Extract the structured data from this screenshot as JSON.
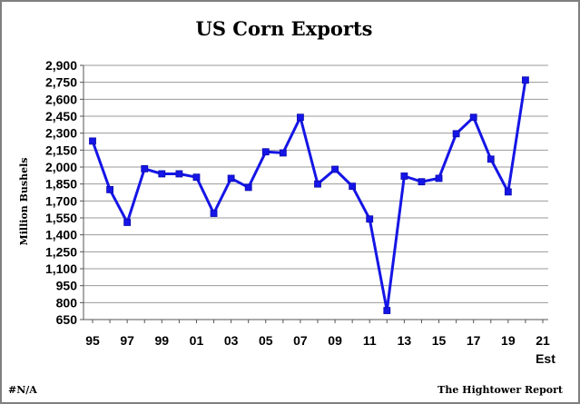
{
  "chart_data": {
    "type": "line",
    "title": "US Corn Exports",
    "ylabel": "Million Bushels",
    "xlabel": "",
    "ylim": [
      650,
      2900
    ],
    "yticks": [
      650,
      800,
      950,
      1100,
      1250,
      1400,
      1550,
      1700,
      1850,
      2000,
      2150,
      2300,
      2450,
      2600,
      2750,
      2900
    ],
    "ytick_labels": [
      "650",
      "800",
      "950",
      "1,100",
      "1,250",
      "1,400",
      "1,550",
      "1,700",
      "1,850",
      "2,000",
      "2,150",
      "2,300",
      "2,450",
      "2,600",
      "2,750",
      "2,900"
    ],
    "xlim": [
      1995,
      2021
    ],
    "xtick_labels": [
      {
        "x": 1995,
        "label": "95"
      },
      {
        "x": 1997,
        "label": "97"
      },
      {
        "x": 1999,
        "label": "99"
      },
      {
        "x": 2001,
        "label": "01"
      },
      {
        "x": 2003,
        "label": "03"
      },
      {
        "x": 2005,
        "label": "05"
      },
      {
        "x": 2007,
        "label": "07"
      },
      {
        "x": 2009,
        "label": "09"
      },
      {
        "x": 2011,
        "label": "11"
      },
      {
        "x": 2013,
        "label": "13"
      },
      {
        "x": 2015,
        "label": "15"
      },
      {
        "x": 2017,
        "label": "17"
      },
      {
        "x": 2019,
        "label": "19"
      },
      {
        "x": 2021,
        "label": "21"
      }
    ],
    "x_sublabel": "Est",
    "grid": true,
    "legend": "none",
    "color": "#1515e6",
    "series": [
      {
        "x": [
          1995,
          1996,
          1997,
          1998,
          1999,
          2000,
          2001,
          2002,
          2003,
          2004,
          2005,
          2006,
          2007,
          2008,
          2009,
          2010,
          2011,
          2012,
          2013,
          2014,
          2015,
          2016,
          2017,
          2018,
          2019,
          2020
        ],
        "values": [
          2230,
          1800,
          1510,
          1985,
          1940,
          1940,
          1910,
          1590,
          1900,
          1820,
          2135,
          2125,
          2440,
          1850,
          1980,
          1830,
          1540,
          730,
          1920,
          1870,
          1900,
          2295,
          2440,
          2070,
          1780,
          2770
        ]
      }
    ]
  },
  "footer": {
    "left": "#N/A",
    "right": "The Hightower Report"
  }
}
